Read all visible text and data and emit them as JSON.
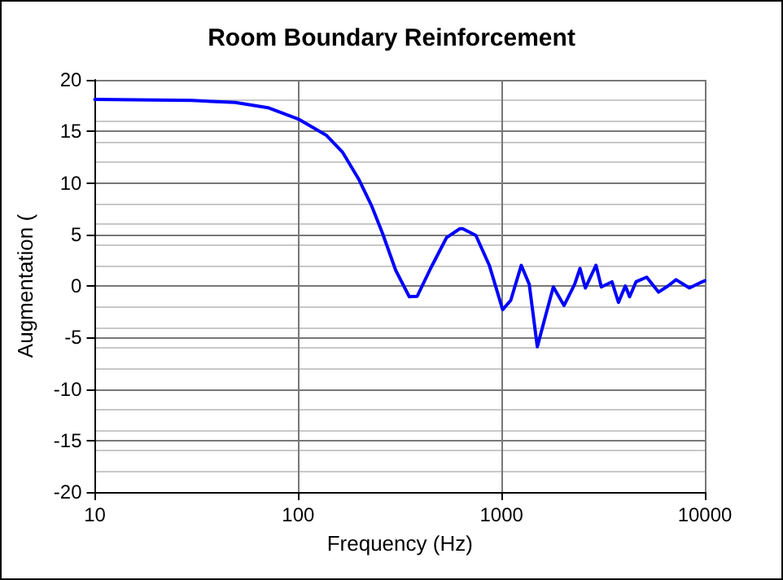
{
  "chart_data": {
    "type": "line",
    "title": "Room Boundary Reinforcement",
    "xlabel": "Frequency (Hz)",
    "ylabel": "Augmentation (",
    "log": "x",
    "grid": true,
    "marker": "none",
    "line_style": "solid",
    "xlim": [
      10,
      10000
    ],
    "xticks": [
      10,
      100,
      1000,
      10000
    ],
    "ylim": [
      -20,
      20
    ],
    "yticks": [
      -20,
      -15,
      -10,
      -5,
      0,
      5,
      10,
      15,
      20
    ],
    "series": [
      {
        "color": "#0000ff",
        "x": [
          10,
          30,
          49,
          71,
          100,
          138,
          165,
          198,
          230,
          260,
          302,
          352,
          385,
          448,
          537,
          624,
          644,
          748,
          871,
          1013,
          1110,
          1251,
          1369,
          1500,
          1641,
          1798,
          2029,
          2288,
          2432,
          2584,
          2915,
          3097,
          3494,
          3758,
          4064,
          4266,
          4585,
          5176,
          5916,
          6590,
          7214,
          8395,
          9460,
          10000
        ],
        "values": [
          18.1,
          18.0,
          17.8,
          17.3,
          16.2,
          14.6,
          13.0,
          10.4,
          7.75,
          5.1,
          1.5,
          -1.05,
          -1.0,
          1.7,
          4.7,
          5.55,
          5.55,
          4.9,
          2.0,
          -2.3,
          -1.4,
          2.0,
          0.15,
          -5.9,
          -3.0,
          -0.1,
          -1.9,
          0.15,
          1.7,
          -0.2,
          2.0,
          -0.1,
          0.4,
          -1.6,
          0,
          -1.05,
          0.4,
          0.85,
          -0.6,
          0,
          0.6,
          -0.2,
          0.3,
          0.5
        ]
      }
    ]
  }
}
